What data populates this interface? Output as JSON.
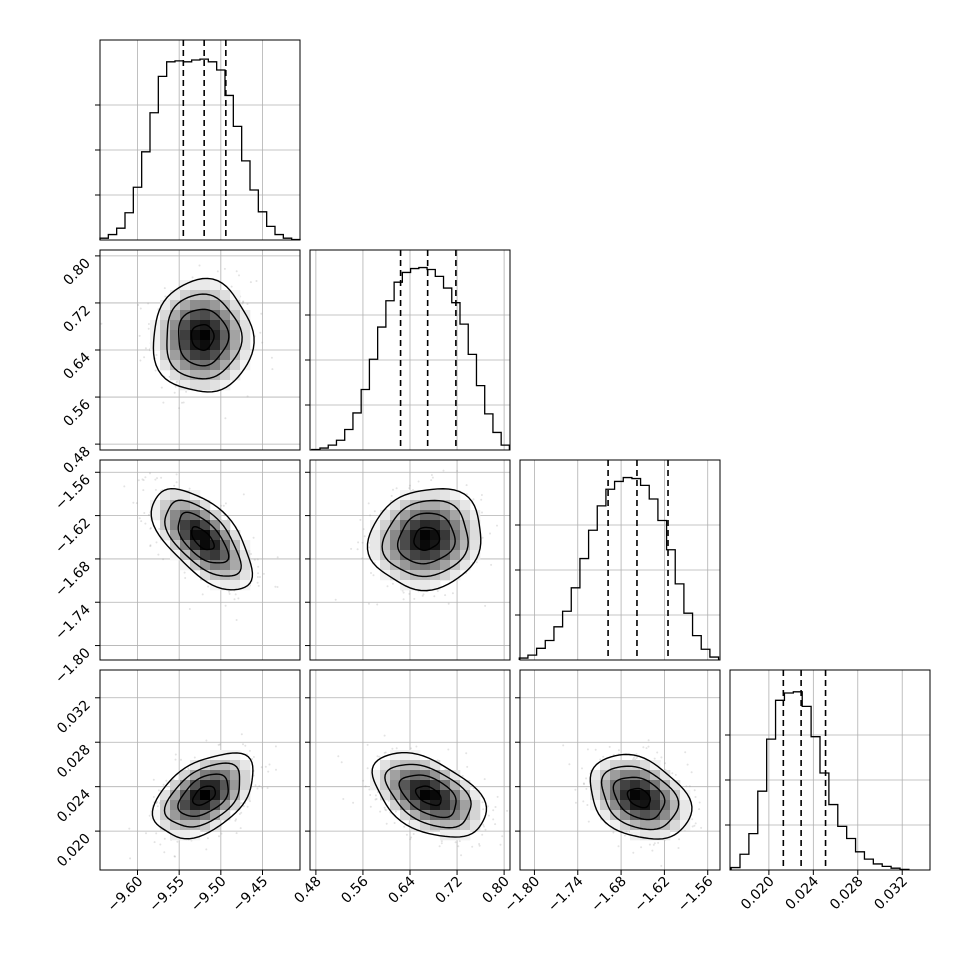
{
  "chart_data": {
    "type": "corner",
    "grid": true,
    "legend": "none",
    "parameters": [
      {
        "range": [
          -9.645,
          -9.405
        ],
        "ticks": [
          "−9.60",
          "−9.55",
          "−9.50",
          "−9.45"
        ],
        "tick_values": [
          -9.6,
          -9.55,
          -9.5,
          -9.45
        ],
        "quantiles": [
          -9.545,
          -9.52,
          -9.494
        ],
        "hist_x": [
          -9.64,
          -9.63,
          -9.62,
          -9.61,
          -9.6,
          -9.59,
          -9.58,
          -9.57,
          -9.56,
          -9.55,
          -9.54,
          -9.53,
          -9.52,
          -9.51,
          -9.5,
          -9.49,
          -9.48,
          -9.47,
          -9.46,
          -9.45,
          -9.44,
          -9.43,
          -9.42,
          -9.41
        ],
        "hist_counts": [
          0.2,
          0.6,
          1.3,
          3.0,
          5.8,
          9.7,
          14.0,
          18.0,
          19.6,
          19.7,
          19.6,
          19.8,
          19.9,
          19.6,
          18.7,
          15.9,
          12.5,
          8.7,
          5.5,
          3.1,
          1.5,
          0.6,
          0.2,
          0.05
        ],
        "hist_max": 22
      },
      {
        "range": [
          0.47,
          0.81
        ],
        "ticks": [
          "0.48",
          "0.56",
          "0.64",
          "0.72",
          "0.80"
        ],
        "tick_values": [
          0.48,
          0.56,
          0.64,
          0.72,
          0.8
        ],
        "quantiles": [
          0.624,
          0.67,
          0.718
        ],
        "hist_x": [
          0.48,
          0.494,
          0.508,
          0.522,
          0.536,
          0.55,
          0.564,
          0.578,
          0.592,
          0.606,
          0.62,
          0.634,
          0.648,
          0.662,
          0.676,
          0.69,
          0.704,
          0.718,
          0.732,
          0.746,
          0.76,
          0.774,
          0.788,
          0.802
        ],
        "hist_counts": [
          0.05,
          0.2,
          0.5,
          1.0,
          2.1,
          3.8,
          6.2,
          9.3,
          12.6,
          15.3,
          17.2,
          18.2,
          18.6,
          18.7,
          18.5,
          17.8,
          16.6,
          15.1,
          12.9,
          9.8,
          6.6,
          3.7,
          1.8,
          0.5
        ],
        "hist_max": 20.5
      },
      {
        "range": [
          -1.82,
          -1.543
        ],
        "ticks": [
          "−1.80",
          "−1.74",
          "−1.68",
          "−1.62",
          "−1.56"
        ],
        "tick_values": [
          -1.8,
          -1.74,
          -1.68,
          -1.62,
          -1.56
        ],
        "quantiles": [
          -1.698,
          -1.658,
          -1.615
        ],
        "hist_x": [
          -1.815,
          -1.803,
          -1.791,
          -1.779,
          -1.767,
          -1.755,
          -1.743,
          -1.731,
          -1.719,
          -1.707,
          -1.695,
          -1.683,
          -1.671,
          -1.659,
          -1.647,
          -1.635,
          -1.623,
          -1.611,
          -1.599,
          -1.587,
          -1.575,
          -1.563,
          -1.551
        ],
        "hist_counts": [
          0.2,
          0.5,
          1.2,
          2.0,
          3.4,
          5.0,
          7.4,
          10.4,
          13.3,
          15.8,
          17.5,
          18.3,
          18.7,
          18.6,
          17.9,
          16.5,
          14.3,
          11.3,
          7.8,
          4.8,
          2.5,
          1.1,
          0.3
        ],
        "hist_max": 20.5
      },
      {
        "range": [
          0.0165,
          0.0345
        ],
        "ticks": [
          "0.020",
          "0.024",
          "0.028",
          "0.032"
        ],
        "tick_values": [
          0.02,
          0.024,
          0.028,
          0.032
        ],
        "quantiles": [
          0.0213,
          0.0229,
          0.0251
        ],
        "hist_x": [
          0.017,
          0.0178,
          0.0186,
          0.0194,
          0.0202,
          0.021,
          0.0218,
          0.0226,
          0.0234,
          0.0242,
          0.025,
          0.0258,
          0.0266,
          0.0274,
          0.0282,
          0.029,
          0.0298,
          0.0306,
          0.0314,
          0.0322
        ],
        "hist_counts": [
          0.2,
          1.3,
          3.0,
          6.5,
          10.8,
          14.0,
          14.6,
          14.7,
          13.5,
          11.0,
          8.0,
          5.4,
          3.6,
          2.6,
          1.5,
          0.9,
          0.5,
          0.3,
          0.15,
          0.05
        ],
        "hist_max": 16.5
      }
    ],
    "pairs": [
      {
        "row": 1,
        "col": 0,
        "center": [
          -9.522,
          0.662
        ],
        "sd": [
          0.03,
          0.048
        ],
        "rho": 0.0
      },
      {
        "row": 2,
        "col": 0,
        "center": [
          -9.522,
          -1.652
        ],
        "sd": [
          0.03,
          0.035
        ],
        "rho": -0.6
      },
      {
        "row": 2,
        "col": 1,
        "center": [
          0.668,
          -1.652
        ],
        "sd": [
          0.048,
          0.035
        ],
        "rho": 0.1
      },
      {
        "row": 3,
        "col": 0,
        "center": [
          -9.52,
          0.0232
        ],
        "sd": [
          0.03,
          0.0019
        ],
        "rho": 0.45
      },
      {
        "row": 3,
        "col": 1,
        "center": [
          0.672,
          0.0232
        ],
        "sd": [
          0.048,
          0.0019
        ],
        "rho": -0.45
      },
      {
        "row": 3,
        "col": 2,
        "center": [
          -1.655,
          0.023
        ],
        "sd": [
          0.035,
          0.0019
        ],
        "rho": -0.3
      }
    ]
  }
}
